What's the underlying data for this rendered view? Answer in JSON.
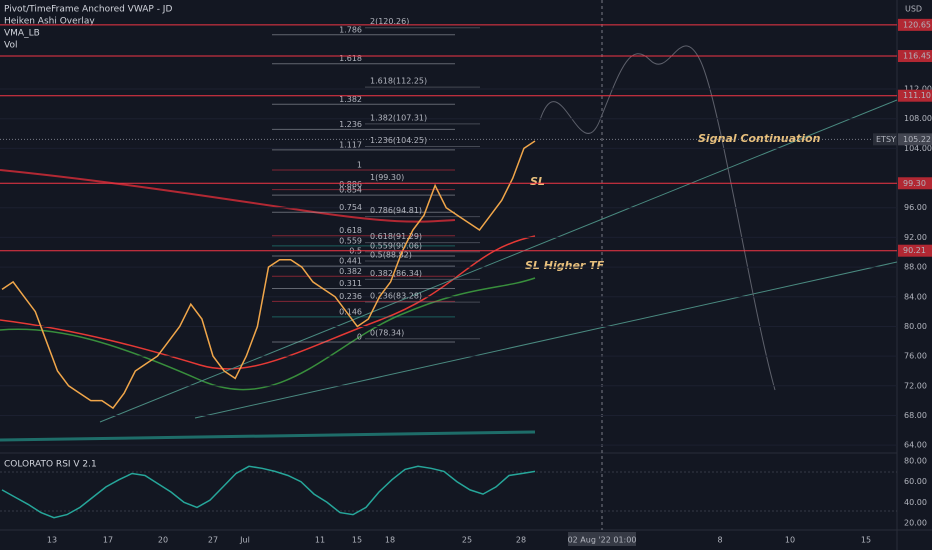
{
  "legend": {
    "items": [
      "Pivot/TimeFrame Anchored VWAP - JD",
      "Heiken Ashi Overlay",
      "VMA_LB",
      "Vol"
    ]
  },
  "price_axis": {
    "unit": "USD",
    "ylim": [
      62,
      124
    ],
    "ticks": [
      {
        "value": 64,
        "label": "64.00"
      },
      {
        "value": 68,
        "label": "68.00"
      },
      {
        "value": 72,
        "label": "72.00"
      },
      {
        "value": 76,
        "label": "76.00"
      },
      {
        "value": 80,
        "label": "80.00"
      },
      {
        "value": 84,
        "label": "84.00"
      },
      {
        "value": 88,
        "label": "88.00"
      },
      {
        "value": 92,
        "label": "92.00"
      },
      {
        "value": 96,
        "label": "96.00"
      },
      {
        "value": 104,
        "label": "104.00"
      },
      {
        "value": 108,
        "label": "108.00"
      },
      {
        "value": 112,
        "label": "112.00"
      }
    ],
    "levels": [
      120.65,
      116.45,
      {
        "value": 111.1,
        "label": "111.10"
      },
      {
        "value": 99.3,
        "label": "99.30"
      },
      90.21
    ],
    "last_price": 105.22,
    "symbol": "ETSY"
  },
  "fib_left": [
    {
      "ratio": 1.786,
      "color": "#b2b5be"
    },
    {
      "ratio": 1.618,
      "color": "#b2b5be"
    },
    {
      "ratio": 1.382,
      "color": "#b2b5be"
    },
    {
      "ratio": 1.236,
      "color": "#b2b5be"
    },
    {
      "ratio": 1.117,
      "color": "#b2b5be"
    },
    {
      "ratio": 1,
      "color": "#f23645"
    },
    {
      "ratio": 0.886,
      "color": "#f23645"
    },
    {
      "ratio": 0.854,
      "color": "#b2b5be"
    },
    {
      "ratio": 0.754,
      "color": "#b2b5be"
    },
    {
      "ratio": 0.618,
      "color": "#f23645"
    },
    {
      "ratio": 0.559,
      "color": "#26a69a"
    },
    {
      "ratio": 0.5,
      "color": "#b2b5be"
    },
    {
      "ratio": 0.441,
      "color": "#b2b5be"
    },
    {
      "ratio": 0.382,
      "color": "#f23645"
    },
    {
      "ratio": 0.311,
      "color": "#b2b5be"
    },
    {
      "ratio": 0.236,
      "color": "#f23645"
    },
    {
      "ratio": 0.146,
      "color": "#26a69a"
    },
    {
      "ratio": 0,
      "color": "#b2b5be"
    }
  ],
  "fib_right": [
    {
      "value": 120.26,
      "label": "2(120.26)"
    },
    {
      "value": 112.25,
      "label": "1.618(112.25)"
    },
    {
      "value": 107.31,
      "label": "1.382(107.31)"
    },
    {
      "value": 104.25,
      "label": "1.236(104.25)"
    },
    {
      "value": 99.3,
      "label": "1(99.30)"
    },
    {
      "value": 94.81,
      "label": "0.786(94.81)"
    },
    {
      "value": 91.29,
      "label": "0.618(91.29)"
    },
    {
      "value": 90.06,
      "label": "0.559(90.06)"
    },
    {
      "value": 88.82,
      "label": "0.5(88.82)"
    },
    {
      "value": 86.34,
      "label": "0.382(86.34)"
    },
    {
      "value": 83.28,
      "label": "0.236(83.28)"
    },
    {
      "value": 78.34,
      "label": "0(78.34)"
    }
  ],
  "price": [
    85,
    86,
    84,
    82,
    78,
    74,
    72,
    71,
    70,
    70,
    69,
    71,
    74,
    75,
    76,
    78,
    80,
    83,
    81,
    76,
    74,
    73,
    76,
    80,
    88,
    89,
    89,
    88,
    86,
    85,
    84,
    82,
    80,
    81,
    84,
    86,
    90,
    93,
    95,
    99,
    96,
    95,
    94,
    93,
    95,
    97,
    100,
    104,
    105
  ],
  "annotations": [
    "Signal Continuation",
    "SL",
    "SL Higher TF"
  ],
  "rsi": {
    "title": "COLORATO RSI V 2.1",
    "ylim": [
      15,
      85
    ],
    "ticks": [
      {
        "value": 80,
        "label": "80.00"
      },
      {
        "value": 60,
        "label": "60.00"
      },
      {
        "value": 40,
        "label": "40.00"
      },
      {
        "value": 20,
        "label": "20.00"
      }
    ],
    "values": [
      52,
      45,
      38,
      30,
      25,
      28,
      35,
      45,
      55,
      62,
      68,
      66,
      58,
      50,
      40,
      35,
      42,
      55,
      68,
      75,
      73,
      70,
      66,
      60,
      48,
      40,
      30,
      28,
      35,
      50,
      62,
      72,
      75,
      73,
      70,
      60,
      52,
      48,
      55,
      66,
      68,
      70
    ]
  },
  "time_axis": {
    "labels": [
      "13",
      "17",
      "20",
      "27",
      "Jul",
      "11",
      "15",
      "18",
      "25",
      "28",
      "8",
      "10",
      "15"
    ],
    "crosshair": "02 Aug '22  01:00"
  }
}
